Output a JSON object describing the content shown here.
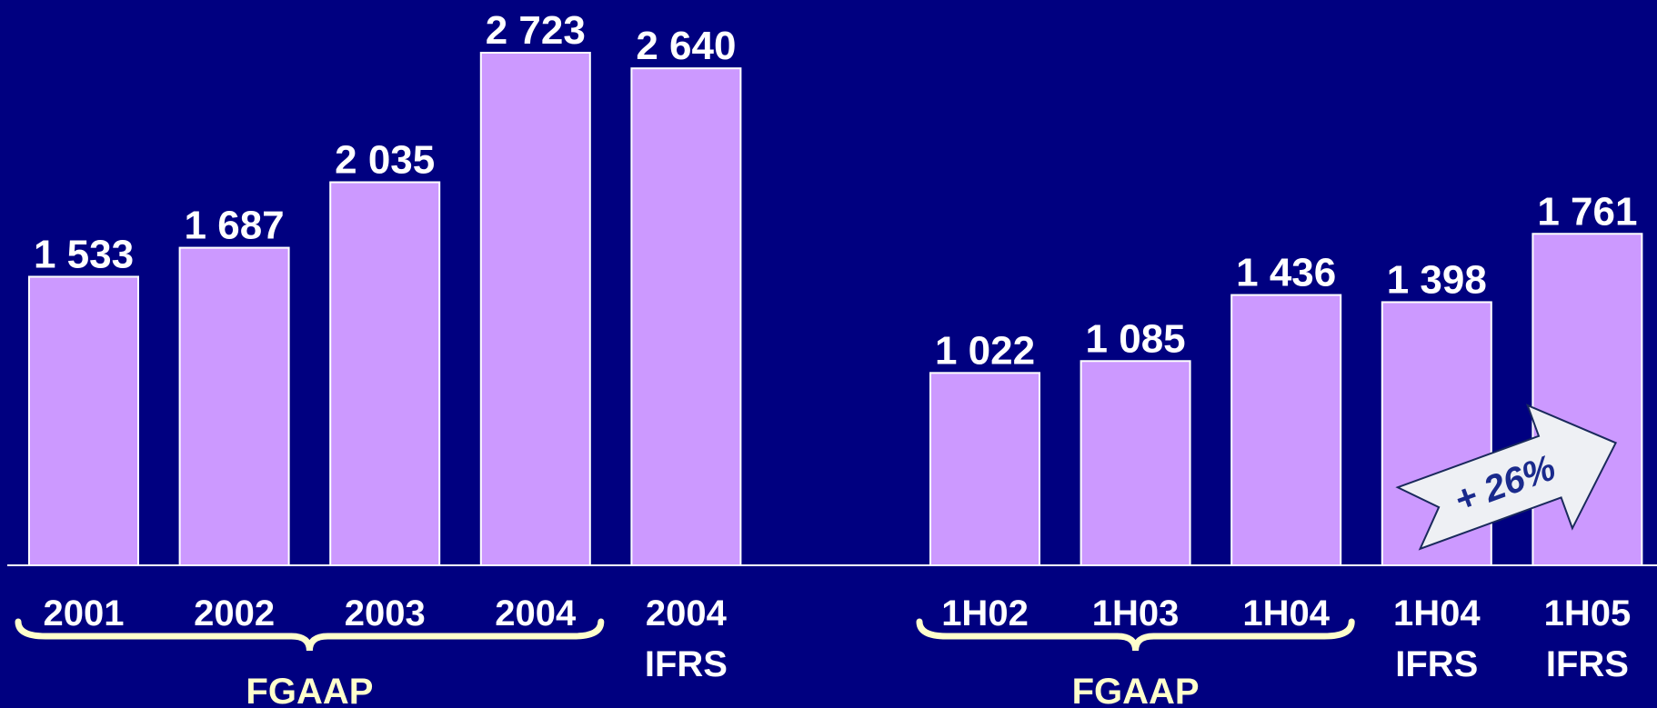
{
  "chart_data": [
    {
      "type": "bar",
      "categories": [
        "2001",
        "2002",
        "2003",
        "2004",
        "2004 IFRS"
      ],
      "values": [
        1533,
        1687,
        2035,
        2723,
        2640
      ],
      "value_labels": [
        "1 533",
        "1 687",
        "2 035",
        "2 723",
        "2 640"
      ],
      "color": "#cc99ff",
      "group": {
        "label": "FGAAP",
        "count": 4
      }
    },
    {
      "type": "bar",
      "categories": [
        "1H02",
        "1H03",
        "1H04",
        "1H04 IFRS",
        "1H05 IFRS"
      ],
      "values": [
        1022,
        1085,
        1436,
        1398,
        1761
      ],
      "value_labels": [
        "1 022",
        "1 085",
        "1 436",
        "1 398",
        "1 761"
      ],
      "color": "#cc99ff",
      "group": {
        "label": "FGAAP",
        "count": 3
      },
      "annotation": "+ 26%"
    }
  ]
}
